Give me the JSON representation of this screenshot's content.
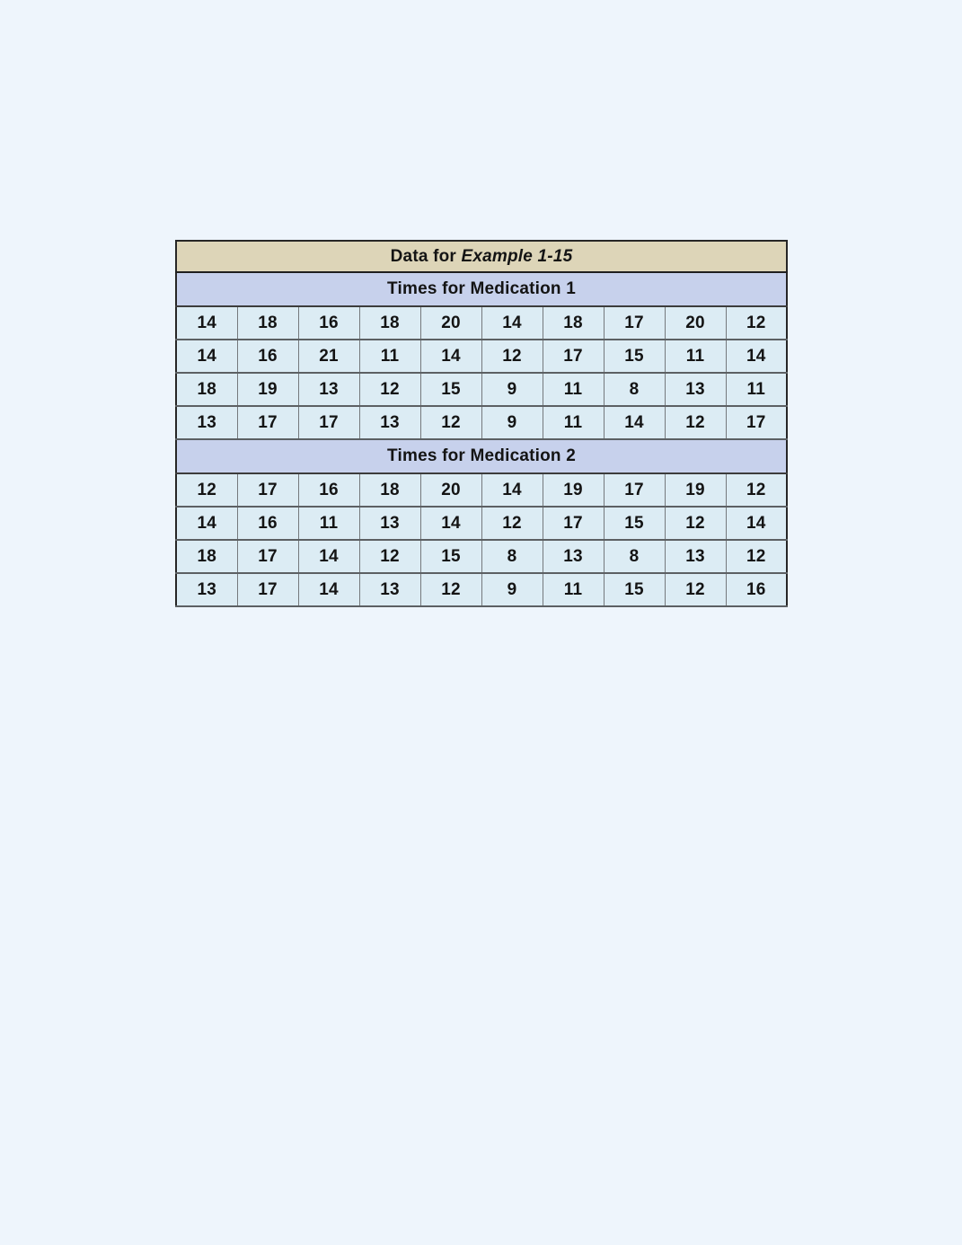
{
  "page": {
    "background_color": "#eef5fc"
  },
  "table": {
    "title": {
      "prefix": "Data for ",
      "italic_part": "Example 1-15"
    },
    "columns": 10,
    "colors": {
      "title_bg": "#ddd5b8",
      "section_header_bg": "#c7d1ec",
      "cell_bg": "#dcecf4",
      "outer_border": "#262626",
      "grid_line": "#5c6063",
      "text": "#141414"
    },
    "sections": [
      {
        "header": "Times for Medication 1",
        "rows": [
          [
            14,
            18,
            16,
            18,
            20,
            14,
            18,
            17,
            20,
            12
          ],
          [
            14,
            16,
            21,
            11,
            14,
            12,
            17,
            15,
            11,
            14
          ],
          [
            18,
            19,
            13,
            12,
            15,
            9,
            11,
            8,
            13,
            11
          ],
          [
            13,
            17,
            17,
            13,
            12,
            9,
            11,
            14,
            12,
            17
          ]
        ]
      },
      {
        "header": "Times for Medication 2",
        "rows": [
          [
            12,
            17,
            16,
            18,
            20,
            14,
            19,
            17,
            19,
            12
          ],
          [
            14,
            16,
            11,
            13,
            14,
            12,
            17,
            15,
            12,
            14
          ],
          [
            18,
            17,
            14,
            12,
            15,
            8,
            13,
            8,
            13,
            12
          ],
          [
            13,
            17,
            14,
            13,
            12,
            9,
            11,
            15,
            12,
            16
          ]
        ]
      }
    ]
  }
}
